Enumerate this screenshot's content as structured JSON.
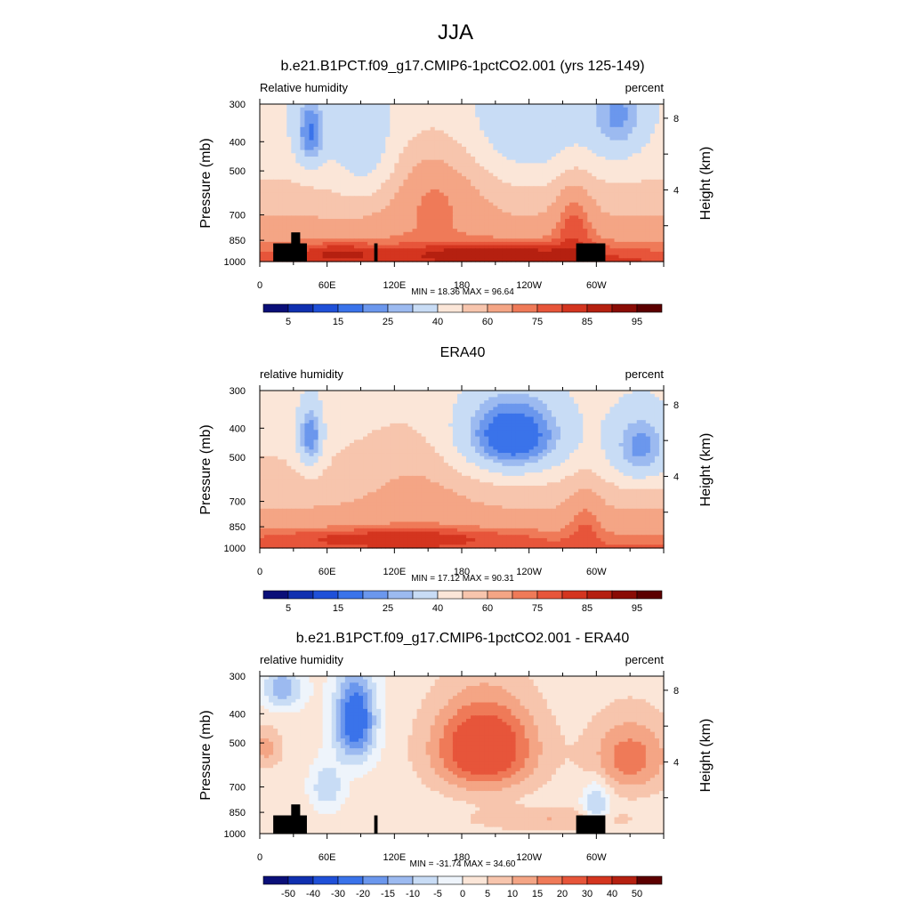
{
  "figure": {
    "title": "JJA"
  },
  "chart_data": [
    {
      "type": "heatmap",
      "title": "b.e21.B1PCT.f09_g17.CMIP6-1pctCO2.001 (yrs 125-149)",
      "field_label": "Relative humidity",
      "units_label": "percent",
      "ylabel": "Pressure (mb)",
      "y2label": "Height (km)",
      "yticks": [
        "300",
        "400",
        "500",
        "700",
        "850",
        "1000"
      ],
      "ytick_values": [
        300,
        400,
        500,
        700,
        850,
        1000
      ],
      "y2ticks": [
        "8",
        "4"
      ],
      "xticks": [
        "0",
        "60E",
        "120E",
        "180",
        "120W",
        "60W"
      ],
      "xtick_values": [
        0,
        60,
        120,
        180,
        240,
        300
      ],
      "xlim": [
        0,
        360
      ],
      "ylim": [
        1000,
        300
      ],
      "stats": "MIN =  18.36  MAX =  96.64",
      "min": 18.36,
      "max": 96.64,
      "colorbar_labels": [
        "5",
        "15",
        "25",
        "40",
        "60",
        "75",
        "85",
        "95"
      ],
      "colorbar_levels": [
        5,
        10,
        15,
        20,
        25,
        30,
        40,
        50,
        60,
        70,
        75,
        80,
        85,
        90,
        95
      ],
      "colorbar_colors": [
        "#0a0f78",
        "#1030b0",
        "#1f50d8",
        "#3a73ea",
        "#6b97ed",
        "#9cbaf0",
        "#c8dcf5",
        "#fbe6d8",
        "#f7c5ad",
        "#f4a585",
        "#ef7a58",
        "#e7553a",
        "#d4351f",
        "#b52010",
        "#8a0c05",
        "#5c0000"
      ],
      "has_topography_mask": true
    },
    {
      "type": "heatmap",
      "title": "ERA40",
      "field_label": "relative humidity",
      "units_label": "percent",
      "ylabel": "Pressure (mb)",
      "y2label": "Height (km)",
      "yticks": [
        "300",
        "400",
        "500",
        "700",
        "850",
        "1000"
      ],
      "ytick_values": [
        300,
        400,
        500,
        700,
        850,
        1000
      ],
      "y2ticks": [
        "8",
        "4"
      ],
      "xticks": [
        "0",
        "60E",
        "120E",
        "180",
        "120W",
        "60W"
      ],
      "xtick_values": [
        0,
        60,
        120,
        180,
        240,
        300
      ],
      "xlim": [
        0,
        360
      ],
      "ylim": [
        1000,
        300
      ],
      "stats": "MIN =  17.12  MAX =  90.31",
      "min": 17.12,
      "max": 90.31,
      "colorbar_labels": [
        "5",
        "15",
        "25",
        "40",
        "60",
        "75",
        "85",
        "95"
      ],
      "colorbar_levels": [
        5,
        10,
        15,
        20,
        25,
        30,
        40,
        50,
        60,
        70,
        75,
        80,
        85,
        90,
        95
      ],
      "colorbar_colors": [
        "#0a0f78",
        "#1030b0",
        "#1f50d8",
        "#3a73ea",
        "#6b97ed",
        "#9cbaf0",
        "#c8dcf5",
        "#fbe6d8",
        "#f7c5ad",
        "#f4a585",
        "#ef7a58",
        "#e7553a",
        "#d4351f",
        "#b52010",
        "#8a0c05",
        "#5c0000"
      ],
      "has_topography_mask": false
    },
    {
      "type": "heatmap",
      "title": "b.e21.B1PCT.f09_g17.CMIP6-1pctCO2.001 - ERA40",
      "field_label": "relative humidity",
      "units_label": "percent",
      "ylabel": "Pressure (mb)",
      "y2label": "Height (km)",
      "yticks": [
        "300",
        "400",
        "500",
        "700",
        "850",
        "1000"
      ],
      "ytick_values": [
        300,
        400,
        500,
        700,
        850,
        1000
      ],
      "y2ticks": [
        "8",
        "4"
      ],
      "xticks": [
        "0",
        "60E",
        "120E",
        "180",
        "120W",
        "60W"
      ],
      "xtick_values": [
        0,
        60,
        120,
        180,
        240,
        300
      ],
      "xlim": [
        0,
        360
      ],
      "ylim": [
        1000,
        300
      ],
      "stats": "MIN = -31.74  MAX =  34.60",
      "min": -31.74,
      "max": 34.6,
      "colorbar_labels": [
        "-50",
        "-40",
        "-30",
        "-20",
        "-15",
        "-10",
        "-5",
        "0",
        "5",
        "10",
        "15",
        "20",
        "30",
        "40",
        "50"
      ],
      "colorbar_levels": [
        -50,
        -40,
        -30,
        -20,
        -15,
        -10,
        -5,
        0,
        5,
        10,
        15,
        20,
        30,
        40,
        50
      ],
      "colorbar_colors": [
        "#0a0f78",
        "#1030b0",
        "#1f50d8",
        "#3a73ea",
        "#6b97ed",
        "#9cbaf0",
        "#c8dcf5",
        "#eef4fb",
        "#fbe6d8",
        "#f7c5ad",
        "#f4a585",
        "#ef7a58",
        "#e7553a",
        "#d4351f",
        "#b52010",
        "#5c0000"
      ],
      "has_topography_mask": true
    }
  ]
}
